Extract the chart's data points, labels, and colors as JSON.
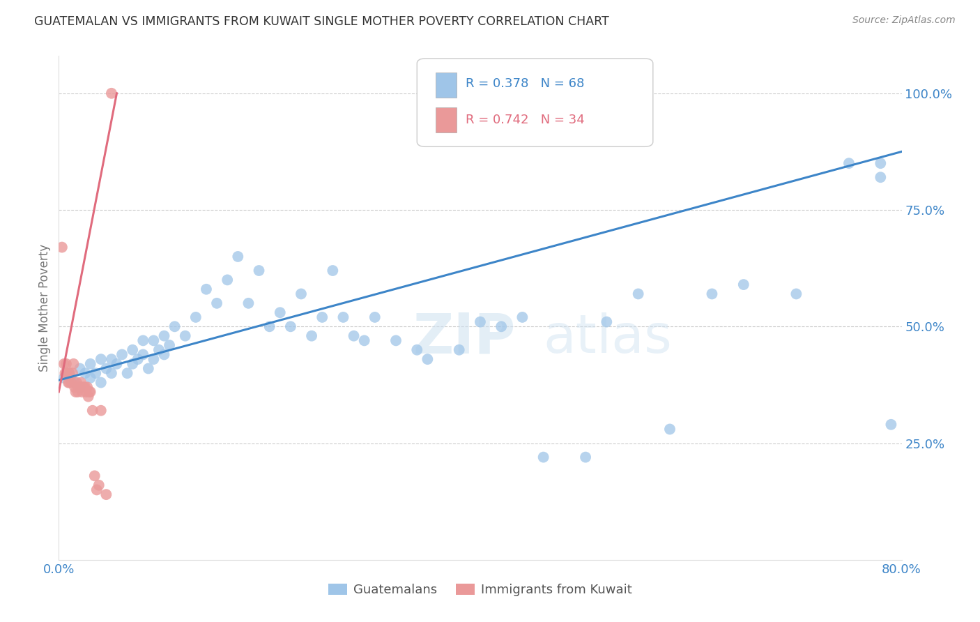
{
  "title": "GUATEMALAN VS IMMIGRANTS FROM KUWAIT SINGLE MOTHER POVERTY CORRELATION CHART",
  "source": "Source: ZipAtlas.com",
  "ylabel": "Single Mother Poverty",
  "ytick_labels": [
    "100.0%",
    "75.0%",
    "50.0%",
    "25.0%"
  ],
  "ytick_values": [
    1.0,
    0.75,
    0.5,
    0.25
  ],
  "xlim": [
    0.0,
    0.8
  ],
  "ylim": [
    0.0,
    1.08
  ],
  "blue_color": "#9fc5e8",
  "pink_color": "#ea9999",
  "line_blue": "#3d85c8",
  "line_pink": "#e06b7d",
  "background_color": "#ffffff",
  "grid_color": "#cccccc",
  "title_color": "#333333",
  "right_tick_color": "#3d85c8",
  "blue_scatter_x": [
    0.005,
    0.01,
    0.015,
    0.02,
    0.02,
    0.025,
    0.03,
    0.03,
    0.035,
    0.04,
    0.04,
    0.045,
    0.05,
    0.05,
    0.055,
    0.06,
    0.065,
    0.07,
    0.07,
    0.075,
    0.08,
    0.08,
    0.085,
    0.09,
    0.09,
    0.095,
    0.1,
    0.1,
    0.105,
    0.11,
    0.12,
    0.13,
    0.14,
    0.15,
    0.16,
    0.17,
    0.18,
    0.19,
    0.2,
    0.21,
    0.22,
    0.23,
    0.24,
    0.25,
    0.26,
    0.27,
    0.28,
    0.29,
    0.3,
    0.32,
    0.34,
    0.35,
    0.38,
    0.4,
    0.42,
    0.44,
    0.46,
    0.5,
    0.52,
    0.55,
    0.58,
    0.62,
    0.65,
    0.7,
    0.75,
    0.78,
    0.78,
    0.79
  ],
  "blue_scatter_y": [
    0.39,
    0.4,
    0.38,
    0.41,
    0.37,
    0.4,
    0.39,
    0.42,
    0.4,
    0.38,
    0.43,
    0.41,
    0.4,
    0.43,
    0.42,
    0.44,
    0.4,
    0.42,
    0.45,
    0.43,
    0.44,
    0.47,
    0.41,
    0.43,
    0.47,
    0.45,
    0.44,
    0.48,
    0.46,
    0.5,
    0.48,
    0.52,
    0.58,
    0.55,
    0.6,
    0.65,
    0.55,
    0.62,
    0.5,
    0.53,
    0.5,
    0.57,
    0.48,
    0.52,
    0.62,
    0.52,
    0.48,
    0.47,
    0.52,
    0.47,
    0.45,
    0.43,
    0.45,
    0.51,
    0.5,
    0.52,
    0.22,
    0.22,
    0.51,
    0.57,
    0.28,
    0.57,
    0.59,
    0.57,
    0.85,
    0.85,
    0.82,
    0.29
  ],
  "pink_scatter_x": [
    0.003,
    0.005,
    0.006,
    0.007,
    0.008,
    0.009,
    0.01,
    0.01,
    0.012,
    0.013,
    0.014,
    0.015,
    0.016,
    0.017,
    0.018,
    0.019,
    0.02,
    0.021,
    0.022,
    0.023,
    0.024,
    0.025,
    0.026,
    0.027,
    0.028,
    0.029,
    0.03,
    0.032,
    0.034,
    0.036,
    0.038,
    0.04,
    0.045,
    0.05
  ],
  "pink_scatter_y": [
    0.67,
    0.42,
    0.4,
    0.42,
    0.4,
    0.38,
    0.38,
    0.4,
    0.38,
    0.4,
    0.42,
    0.37,
    0.36,
    0.38,
    0.36,
    0.37,
    0.37,
    0.38,
    0.36,
    0.37,
    0.37,
    0.37,
    0.36,
    0.37,
    0.35,
    0.36,
    0.36,
    0.32,
    0.18,
    0.15,
    0.16,
    0.32,
    0.14,
    1.0
  ],
  "blue_line_x": [
    0.0,
    0.8
  ],
  "blue_line_y": [
    0.385,
    0.875
  ],
  "pink_line_x": [
    0.0,
    0.055
  ],
  "pink_line_y": [
    0.36,
    1.0
  ]
}
